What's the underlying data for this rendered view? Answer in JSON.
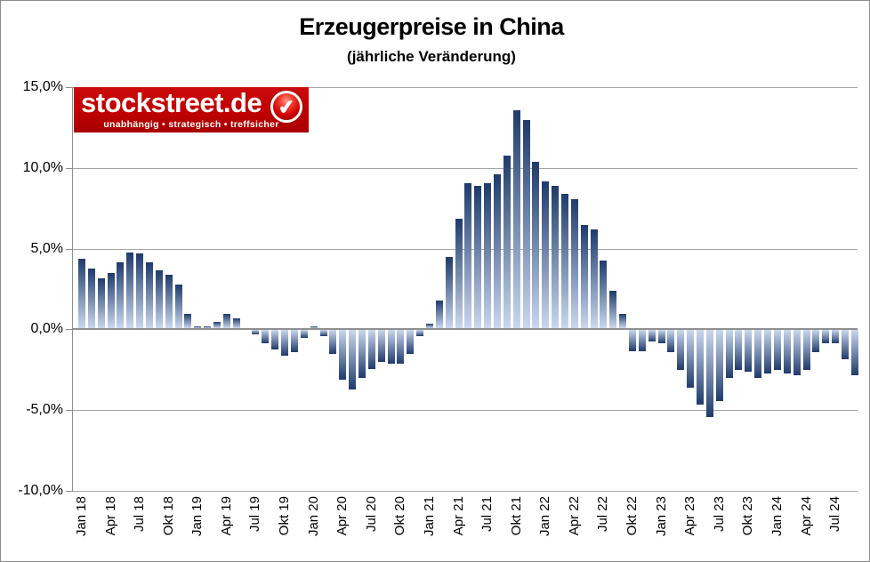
{
  "header": {
    "title": "Erzeugerpreise in China",
    "subtitle": "(jährliche  Veränderung)"
  },
  "logo": {
    "brand": "stockstreet.de",
    "tagline": "unabhängig • strategisch • treffsicher",
    "check_icon": "✔",
    "bg_color": "#C00000"
  },
  "chart_data": {
    "type": "bar",
    "title": "Erzeugerpreise in China",
    "subtitle": "(jährliche Veränderung)",
    "unit": "%",
    "ylim": [
      -10,
      15
    ],
    "y_tick_step": 5,
    "grid": true,
    "y_tick_labels": [
      "15,0%",
      "10,0%",
      "5,0%",
      "0,0%",
      "-5,0%",
      "-10,0%"
    ],
    "x_tick_labels": [
      "Jan 18",
      "Apr 18",
      "Jul 18",
      "Okt 18",
      "Jan 19",
      "Apr 19",
      "Jul 19",
      "Okt 19",
      "Jan 20",
      "Apr 20",
      "Jul 20",
      "Okt 20",
      "Jan 21",
      "Apr 21",
      "Jul 21",
      "Okt 21",
      "Jan 22",
      "Apr 22",
      "Jul 22",
      "Okt 22",
      "Jan 23",
      "Apr 23",
      "Jul 23",
      "Okt 23",
      "Jan 24",
      "Apr 24",
      "Jul 24"
    ],
    "x": [
      "Jan 18",
      "Feb 18",
      "Mär 18",
      "Apr 18",
      "Mai 18",
      "Jun 18",
      "Jul 18",
      "Aug 18",
      "Sep 18",
      "Okt 18",
      "Nov 18",
      "Dez 18",
      "Jan 19",
      "Feb 19",
      "Mär 19",
      "Apr 19",
      "Mai 19",
      "Jun 19",
      "Jul 19",
      "Aug 19",
      "Sep 19",
      "Okt 19",
      "Nov 19",
      "Dez 19",
      "Jan 20",
      "Feb 20",
      "Mär 20",
      "Apr 20",
      "Mai 20",
      "Jun 20",
      "Jul 20",
      "Aug 20",
      "Sep 20",
      "Okt 20",
      "Nov 20",
      "Dez 20",
      "Jan 21",
      "Feb 21",
      "Mär 21",
      "Apr 21",
      "Mai 21",
      "Jun 21",
      "Jul 21",
      "Aug 21",
      "Sep 21",
      "Okt 21",
      "Nov 21",
      "Dez 21",
      "Jan 22",
      "Feb 22",
      "Mär 22",
      "Apr 22",
      "Mai 22",
      "Jun 22",
      "Jul 22",
      "Aug 22",
      "Sep 22",
      "Okt 22",
      "Nov 22",
      "Dez 22",
      "Jan 23",
      "Feb 23",
      "Mär 23",
      "Apr 23",
      "Mai 23",
      "Jun 23",
      "Jul 23",
      "Aug 23",
      "Sep 23",
      "Okt 23",
      "Nov 23",
      "Dez 23",
      "Jan 24",
      "Feb 24",
      "Mär 24",
      "Apr 24",
      "Mai 24",
      "Jun 24",
      "Jul 24",
      "Aug 24",
      "Sep 24"
    ],
    "values": [
      4.3,
      3.7,
      3.1,
      3.4,
      4.1,
      4.7,
      4.6,
      4.1,
      3.6,
      3.3,
      2.7,
      0.9,
      0.1,
      0.1,
      0.4,
      0.9,
      0.6,
      0.0,
      -0.3,
      -0.8,
      -1.2,
      -1.6,
      -1.4,
      -0.5,
      0.1,
      -0.4,
      -1.5,
      -3.1,
      -3.7,
      -3.0,
      -2.4,
      -2.0,
      -2.1,
      -2.1,
      -1.5,
      -0.4,
      0.3,
      1.7,
      4.4,
      6.8,
      9.0,
      8.8,
      9.0,
      9.5,
      10.7,
      13.5,
      12.9,
      10.3,
      9.1,
      8.8,
      8.3,
      8.0,
      6.4,
      6.1,
      4.2,
      2.3,
      0.9,
      -1.3,
      -1.3,
      -0.7,
      -0.8,
      -1.4,
      -2.5,
      -3.6,
      -4.6,
      -5.4,
      -4.4,
      -3.0,
      -2.5,
      -2.6,
      -3.0,
      -2.7,
      -2.5,
      -2.7,
      -2.8,
      -2.5,
      -1.4,
      -0.8,
      -0.8,
      -1.8,
      -2.8
    ],
    "bar_gradient_top": "#1f3b6b",
    "bar_gradient_bottom": "#c9d7ee",
    "gridline_color": "#a6a6a6",
    "axis_color": "#8f8f8f"
  }
}
